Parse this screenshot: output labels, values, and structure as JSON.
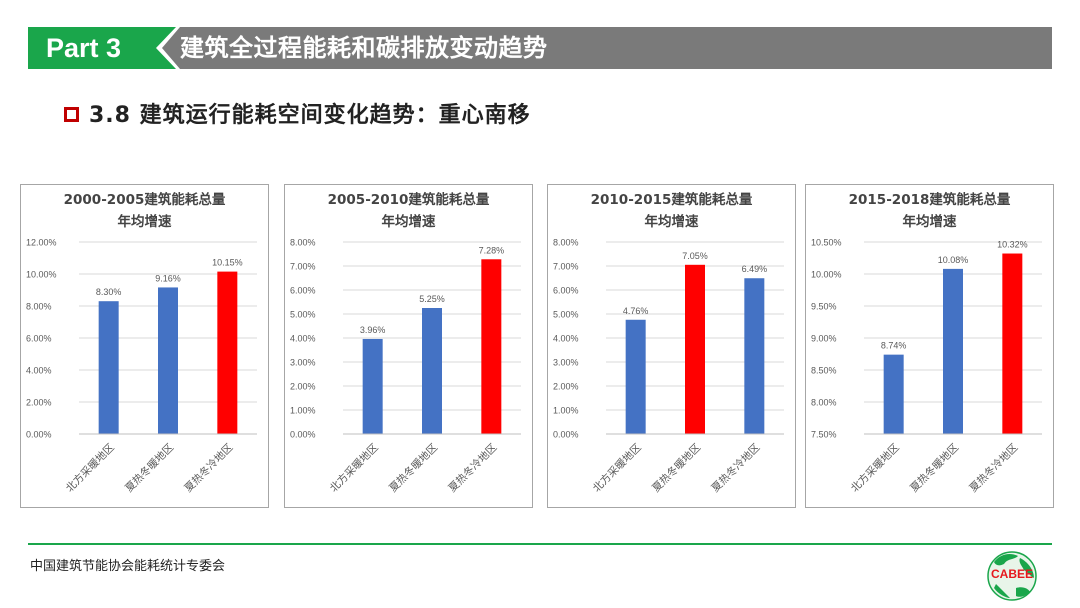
{
  "header": {
    "part_label": "Part 3",
    "section_title": "建筑全过程能耗和碳排放变动趋势",
    "colors": {
      "green": "#1aa64b",
      "gray": "#7a7a7a"
    }
  },
  "subtitle": {
    "text": "3.8 建筑运行能耗空间变化趋势：重心南移",
    "bullet_icon": "hollow-square-icon",
    "bullet_color": "#c00000"
  },
  "colors": {
    "blue_bar": "#4472c4",
    "red_bar": "#ff0000",
    "grid": "#d9d9d9",
    "axis_text": "#595959"
  },
  "chart_data": [
    {
      "type": "bar",
      "title_lines": [
        "2000-2005建筑能耗总量",
        "年均增速"
      ],
      "categories": [
        "北方采暖地区",
        "夏热冬暖地区",
        "夏热冬冷地区"
      ],
      "values": [
        8.3,
        9.16,
        10.15
      ],
      "value_labels": [
        "8.30%",
        "9.16%",
        "10.15%"
      ],
      "bar_colors": [
        "#4472c4",
        "#4472c4",
        "#ff0000"
      ],
      "ylim": [
        0,
        12
      ],
      "ticks": [
        0,
        2,
        4,
        6,
        8,
        10,
        12
      ],
      "tick_labels": [
        "0.00%",
        "2.00%",
        "4.00%",
        "6.00%",
        "8.00%",
        "10.00%",
        "12.00%"
      ],
      "grid": true
    },
    {
      "type": "bar",
      "title_lines": [
        "2005-2010建筑能耗总量",
        "年均增速"
      ],
      "categories": [
        "北方采暖地区",
        "夏热冬暖地区",
        "夏热冬冷地区"
      ],
      "values": [
        3.96,
        5.25,
        7.28
      ],
      "value_labels": [
        "3.96%",
        "5.25%",
        "7.28%"
      ],
      "bar_colors": [
        "#4472c4",
        "#4472c4",
        "#ff0000"
      ],
      "ylim": [
        0,
        8
      ],
      "ticks": [
        0,
        1,
        2,
        3,
        4,
        5,
        6,
        7,
        8
      ],
      "tick_labels": [
        "0.00%",
        "1.00%",
        "2.00%",
        "3.00%",
        "4.00%",
        "5.00%",
        "6.00%",
        "7.00%",
        "8.00%"
      ],
      "grid": true
    },
    {
      "type": "bar",
      "title_lines": [
        "2010-2015建筑能耗总量",
        "年均增速"
      ],
      "categories": [
        "北方采暖地区",
        "夏热冬暖地区",
        "夏热冬冷地区"
      ],
      "values": [
        4.76,
        7.05,
        6.49
      ],
      "value_labels": [
        "4.76%",
        "7.05%",
        "6.49%"
      ],
      "bar_colors": [
        "#4472c4",
        "#ff0000",
        "#4472c4"
      ],
      "ylim": [
        0,
        8
      ],
      "ticks": [
        0,
        1,
        2,
        3,
        4,
        5,
        6,
        7,
        8
      ],
      "tick_labels": [
        "0.00%",
        "1.00%",
        "2.00%",
        "3.00%",
        "4.00%",
        "5.00%",
        "6.00%",
        "7.00%",
        "8.00%"
      ],
      "grid": true
    },
    {
      "type": "bar",
      "title_lines": [
        "2015-2018建筑能耗总量",
        "年均增速"
      ],
      "categories": [
        "北方采暖地区",
        "夏热冬暖地区",
        "夏热冬冷地区"
      ],
      "values": [
        8.74,
        10.08,
        10.32
      ],
      "value_labels": [
        "8.74%",
        "10.08%",
        "10.32%"
      ],
      "bar_colors": [
        "#4472c4",
        "#4472c4",
        "#ff0000"
      ],
      "ylim": [
        7.5,
        10.5
      ],
      "ticks": [
        7.5,
        8.0,
        8.5,
        9.0,
        9.5,
        10.0,
        10.5
      ],
      "tick_labels": [
        "7.50%",
        "8.00%",
        "8.50%",
        "9.00%",
        "9.50%",
        "10.00%",
        "10.50%"
      ],
      "grid": true
    }
  ],
  "footer": {
    "org_text": "中国建筑节能协会能耗统计专委会",
    "logo_text": "CABEE",
    "logo_icon": "globe-logo-icon"
  }
}
